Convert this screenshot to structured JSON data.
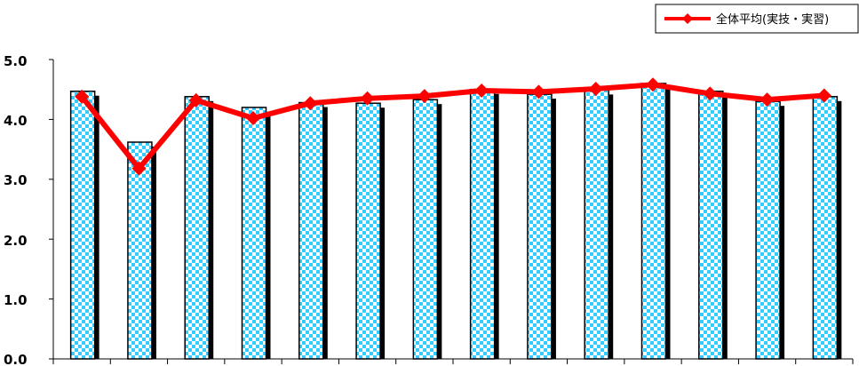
{
  "chart_data": {
    "type": "bar",
    "title": "",
    "xlabel": "",
    "ylabel": "",
    "ylim": [
      0,
      5.0
    ],
    "y_ticks": [
      "0.0",
      "1.0",
      "2.0",
      "3.0",
      "4.0",
      "5.0"
    ],
    "categories": [
      "",
      "",
      "",
      "",
      "",
      "",
      "",
      "",
      "",
      "",
      "",
      "",
      "",
      ""
    ],
    "bar_values": [
      4.47,
      3.62,
      4.38,
      4.2,
      4.28,
      4.27,
      4.33,
      4.5,
      4.42,
      4.49,
      4.6,
      4.47,
      4.3,
      4.38
    ],
    "series": [
      {
        "name": "全体平均(実技・実習)",
        "type": "line",
        "color": "#ff0000",
        "values": [
          4.38,
          3.18,
          4.32,
          4.02,
          4.27,
          4.35,
          4.39,
          4.48,
          4.46,
          4.51,
          4.58,
          4.43,
          4.33,
          4.4
        ]
      }
    ],
    "bar_colors": [
      "#33ccff",
      "#ffffff",
      "#000000"
    ],
    "grid": false,
    "legend_position": "top-right"
  }
}
